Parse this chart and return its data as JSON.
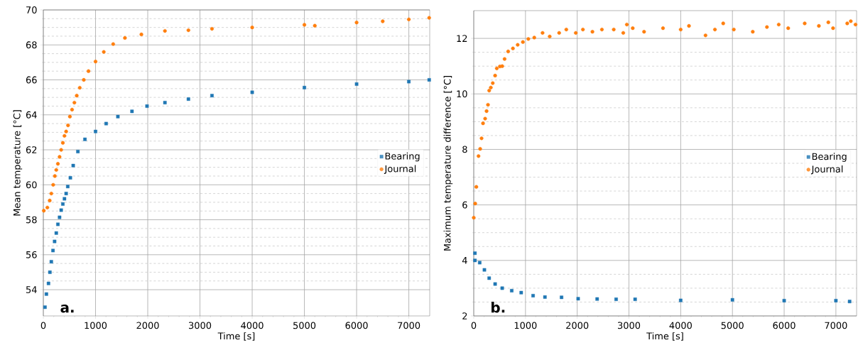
{
  "chart_data": [
    {
      "type": "scatter",
      "xlabel": "Time [s]",
      "ylabel": "Mean temperature [°C]",
      "annotations": [
        "a."
      ],
      "xlim": [
        0,
        7400
      ],
      "ylim": [
        52.5,
        70
      ],
      "xticks": [
        0,
        1000,
        2000,
        3000,
        4000,
        5000,
        6000,
        7000
      ],
      "yticks": [
        54,
        56,
        58,
        60,
        62,
        64,
        66,
        68,
        70
      ],
      "grid": true,
      "legend": "center right",
      "series": [
        {
          "name": "Bearing",
          "color": "#1f77b4",
          "marker": "square",
          "x": [
            32,
            59,
            99,
            126,
            153,
            185,
            216,
            248,
            279,
            311,
            342,
            374,
            405,
            437,
            468,
            518,
            572,
            662,
            797,
            1000,
            1203,
            1428,
            1698,
            1986,
            2329,
            2779,
            3230,
            4000,
            5000,
            6000,
            7000,
            7390
          ],
          "values": [
            53.0,
            53.75,
            54.36,
            55.0,
            55.6,
            56.24,
            56.76,
            57.24,
            57.74,
            58.14,
            58.55,
            58.9,
            59.2,
            59.5,
            59.9,
            60.4,
            61.1,
            61.9,
            62.6,
            63.05,
            63.5,
            63.9,
            64.2,
            64.5,
            64.7,
            64.9,
            65.1,
            65.29,
            65.56,
            65.76,
            65.9,
            66.0
          ]
        },
        {
          "name": "Journal",
          "color": "#ff7f0e",
          "marker": "circle",
          "x": [
            9,
            77,
            122,
            153,
            189,
            221,
            248,
            279,
            311,
            342,
            374,
            405,
            437,
            473,
            509,
            550,
            595,
            640,
            698,
            775,
            865,
            1000,
            1158,
            1338,
            1563,
            1878,
            2329,
            2779,
            3230,
            4000,
            5000,
            5200,
            6000,
            6500,
            7000,
            7390
          ],
          "values": [
            58.52,
            58.7,
            59.1,
            59.5,
            60.0,
            60.5,
            60.85,
            61.2,
            61.6,
            62.0,
            62.4,
            62.8,
            63.05,
            63.4,
            63.9,
            64.3,
            64.7,
            65.1,
            65.55,
            66.0,
            66.5,
            67.05,
            67.6,
            68.05,
            68.4,
            68.6,
            68.8,
            68.84,
            68.92,
            69.0,
            69.15,
            69.1,
            69.28,
            69.35,
            69.46,
            69.55
          ]
        }
      ]
    },
    {
      "type": "scatter",
      "xlabel": "Time [s]",
      "ylabel": "Maximum temperature difference [°C]",
      "annotations": [
        "b."
      ],
      "xlim": [
        0,
        7400
      ],
      "ylim": [
        2,
        13
      ],
      "xticks": [
        0,
        1000,
        2000,
        3000,
        4000,
        5000,
        6000,
        7000
      ],
      "yticks": [
        2,
        4,
        6,
        8,
        10,
        12
      ],
      "grid": true,
      "legend": "center right",
      "series": [
        {
          "name": "Bearing",
          "color": "#1f77b4",
          "marker": "square",
          "x": [
            23,
            23,
            115,
            206,
            298,
            413,
            550,
            734,
            917,
            1147,
            1376,
            1697,
            2018,
            2385,
            2752,
            3119,
            4000,
            5000,
            6000,
            7000,
            7265
          ],
          "values": [
            4.26,
            4.0,
            3.92,
            3.66,
            3.36,
            3.15,
            3.0,
            2.91,
            2.84,
            2.73,
            2.68,
            2.67,
            2.62,
            2.61,
            2.6,
            2.6,
            2.56,
            2.58,
            2.55,
            2.55,
            2.52
          ]
        },
        {
          "name": "Journal",
          "color": "#ff7f0e",
          "marker": "circle",
          "x": [
            0,
            28,
            50,
            92,
            124,
            151,
            179,
            220,
            248,
            275,
            298,
            330,
            367,
            413,
            445,
            505,
            550,
            596,
            665,
            757,
            849,
            950,
            1055,
            1170,
            1330,
            1468,
            1651,
            1789,
            1972,
            2110,
            2294,
            2477,
            2706,
            2890,
            2959,
            3073,
            3292,
            3658,
            4000,
            4160,
            4480,
            4662,
            4822,
            5027,
            5393,
            5667,
            5895,
            6078,
            6397,
            6671,
            6854,
            6945,
            7219,
            7288,
            7379
          ],
          "values": [
            5.54,
            6.05,
            6.65,
            7.76,
            8.02,
            8.4,
            8.94,
            9.11,
            9.38,
            9.61,
            10.12,
            10.23,
            10.39,
            10.66,
            10.92,
            10.99,
            11.0,
            11.26,
            11.53,
            11.64,
            11.77,
            11.87,
            11.98,
            12.03,
            12.2,
            12.07,
            12.2,
            12.32,
            12.2,
            12.32,
            12.24,
            12.32,
            12.32,
            12.2,
            12.5,
            12.37,
            12.24,
            12.37,
            12.32,
            12.45,
            12.11,
            12.32,
            12.54,
            12.32,
            12.24,
            12.41,
            12.5,
            12.37,
            12.54,
            12.45,
            12.58,
            12.37,
            12.54,
            12.62,
            12.5
          ]
        }
      ]
    }
  ]
}
